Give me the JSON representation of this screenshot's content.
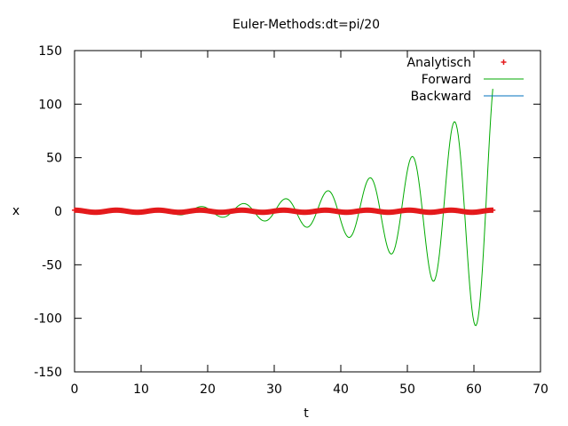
{
  "chart_data": {
    "type": "line",
    "title": "Euler-Methods:dt=pi/20",
    "xlabel": "t",
    "ylabel": "x",
    "xlim": [
      0,
      70
    ],
    "ylim": [
      -150,
      150
    ],
    "xticks": [
      0,
      10,
      20,
      30,
      40,
      50,
      60,
      70
    ],
    "yticks": [
      -150,
      -100,
      -50,
      0,
      50,
      100,
      150
    ],
    "grid": false,
    "legend_position": "top-right",
    "dt": 0.15707963267948966,
    "t_end": 62.8318530718,
    "series": [
      {
        "name": "Analytisch",
        "style": "points",
        "marker": "+",
        "color": "#e41a1c",
        "equation": "x(t) = cos(t)"
      },
      {
        "name": "Forward",
        "style": "line",
        "color": "#00aa00",
        "equation": "explicit Euler for x'' = -x, x(0)=1, v(0)=0"
      },
      {
        "name": "Backward",
        "style": "line",
        "color": "#0072bd",
        "equation": "implicit Euler for x'' = -x, x(0)=1, v(0)=0"
      }
    ]
  }
}
